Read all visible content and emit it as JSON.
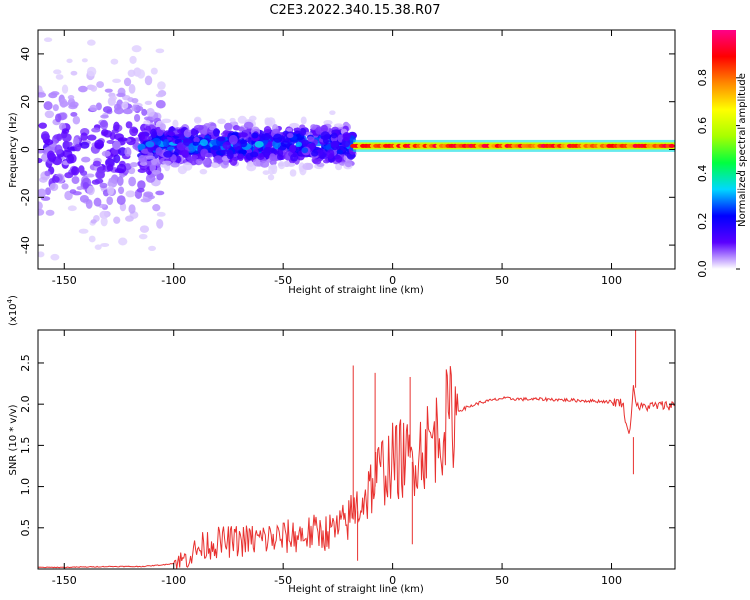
{
  "figure": {
    "title": "C2E3.2022.340.15.38.R07"
  },
  "chart_data": [
    {
      "type": "heatmap",
      "xlabel": "Height of straight line (km)",
      "ylabel": "Frequency (Hz)",
      "xlim": [
        -162,
        129
      ],
      "ylim": [
        -50,
        50
      ],
      "xticks": [
        -150,
        -100,
        -50,
        0,
        50,
        100
      ],
      "yticks": [
        -40,
        -20,
        0,
        20,
        40
      ],
      "colorbar": {
        "label": "Normalized spectral amplitude",
        "range": [
          0,
          1
        ],
        "ticks": [
          "0.0",
          "0.2",
          "0.4",
          "0.6",
          "0.8"
        ],
        "colormap": [
          "#ffffff",
          "#5a00ff",
          "#0000ff",
          "#00d8ff",
          "#00ff40",
          "#a8ff00",
          "#ffff00",
          "#ff8800",
          "#ff0000",
          "#ff0088"
        ]
      },
      "ridge": [
        {
          "from": -162,
          "to": -105,
          "center": 0,
          "spread": 40,
          "peak_amplitude": 0.15,
          "character": "scattered noise"
        },
        {
          "from": -115,
          "to": -18,
          "center": 2,
          "spread": 10,
          "peak_amplitude": 0.35,
          "character": "patchy band"
        },
        {
          "from": -18,
          "to": 129,
          "center": 1.5,
          "spread": 2,
          "peak_amplitude": 0.95,
          "character": "narrow continuous line"
        }
      ]
    },
    {
      "type": "line",
      "xlabel": "Height of straight line (km)",
      "ylabel": "SNR (10 * v/v)",
      "scale_label": "(x10",
      "scale_exponent": "4",
      "scale_suffix": ")",
      "xlim": [
        -162,
        129
      ],
      "ylim": [
        0,
        2.9
      ],
      "xticks": [
        -150,
        -100,
        -50,
        0,
        50,
        100
      ],
      "yticks": [
        "0.5",
        "1.0",
        "1.5",
        "2.0",
        "2.5"
      ],
      "color": "#e8312f",
      "series": [
        {
          "x": [
            -162,
            -150,
            -130,
            -115,
            -105,
            -100,
            -95,
            -90,
            -85,
            -80,
            -75,
            -70,
            -65,
            -60,
            -55,
            -50,
            -45,
            -40,
            -35,
            -30,
            -25,
            -20,
            -18,
            -15,
            -12,
            -10,
            -5,
            0,
            5,
            8,
            10,
            15,
            20,
            25,
            30,
            40,
            50,
            60,
            70,
            80,
            90,
            100,
            105,
            108,
            110,
            112,
            115,
            120,
            129
          ],
          "y": [
            0.02,
            0.02,
            0.03,
            0.03,
            0.05,
            0.07,
            0.12,
            0.22,
            0.3,
            0.32,
            0.33,
            0.34,
            0.35,
            0.36,
            0.37,
            0.38,
            0.4,
            0.42,
            0.44,
            0.45,
            0.48,
            0.6,
            0.7,
            0.8,
            0.9,
            1.0,
            1.2,
            1.3,
            1.35,
            1.3,
            1.4,
            1.5,
            1.62,
            1.82,
            1.92,
            2.02,
            2.07,
            2.06,
            2.06,
            2.05,
            2.04,
            2.03,
            2.02,
            1.6,
            2.2,
            1.96,
            1.97,
            1.98,
            1.99
          ]
        }
      ],
      "spikes": [
        {
          "x": -18,
          "y": 2.47
        },
        {
          "x": -16,
          "y": 0.1
        },
        {
          "x": -8,
          "y": 2.38
        },
        {
          "x": 8,
          "y": 2.33
        },
        {
          "x": 9,
          "y": 0.3
        },
        {
          "x": 110,
          "y": 1.15
        },
        {
          "x": 111,
          "y": 2.9
        }
      ]
    }
  ]
}
